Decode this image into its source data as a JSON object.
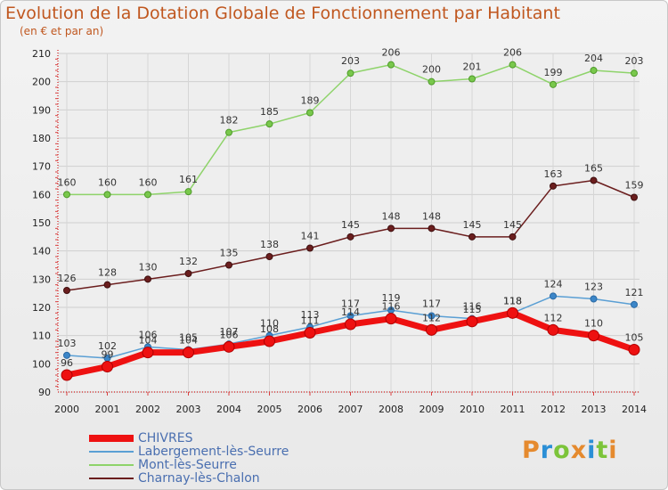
{
  "title": "Evolution de la Dotation Globale de Fonctionnement par Habitant",
  "subtitle": "(en € et par an)",
  "brand": {
    "letters": [
      "P",
      "r",
      "o",
      "x",
      "i",
      "t",
      "i"
    ],
    "colors": [
      "#e58a2e",
      "#2b8fd6",
      "#7cc43a",
      "#e58a2e",
      "#2b8fd6",
      "#7cc43a",
      "#e58a2e"
    ]
  },
  "chart_data": {
    "type": "line",
    "title": "Evolution de la Dotation Globale de Fonctionnement par Habitant",
    "xlabel": "",
    "ylabel": "(en € et par an)",
    "x": [
      "2000",
      "2001",
      "2002",
      "2003",
      "2004",
      "2005",
      "2006",
      "2007",
      "2008",
      "2009",
      "2010",
      "2011",
      "2012",
      "2013",
      "2014"
    ],
    "ylim": [
      90,
      210
    ],
    "yticks": [
      "90",
      "100",
      "110",
      "120",
      "130",
      "140",
      "150",
      "160",
      "170",
      "180",
      "190",
      "200",
      "210"
    ],
    "grid": true,
    "legend_position": "bottom-left",
    "series": [
      {
        "name": "Charnay-lès-Chalon",
        "color": "#6b1e1e",
        "values": [
          126,
          128,
          130,
          132,
          135,
          138,
          141,
          145,
          148,
          148,
          145,
          145,
          163,
          165,
          159
        ]
      },
      {
        "name": "Mont-lès-Seurre",
        "color": "#8ed36a",
        "values": [
          160,
          160,
          160,
          161,
          182,
          185,
          189,
          203,
          206,
          200,
          201,
          206,
          199,
          204,
          203
        ]
      },
      {
        "name": "Labergement-lès-Seurre",
        "color": "#5a9fd4",
        "values": [
          103,
          102,
          106,
          105,
          107,
          110,
          113,
          117,
          119,
          117,
          116,
          118,
          124,
          123,
          121
        ]
      },
      {
        "name": "CHIVRES",
        "color": "#ee1111",
        "values": [
          96,
          99,
          104,
          104,
          106,
          108,
          111,
          114,
          116,
          112,
          115,
          118,
          112,
          110,
          105
        ]
      }
    ],
    "legend_order": [
      "CHIVRES",
      "Labergement-lès-Seurre",
      "Mont-lès-Seurre",
      "Charnay-lès-Chalon"
    ]
  }
}
